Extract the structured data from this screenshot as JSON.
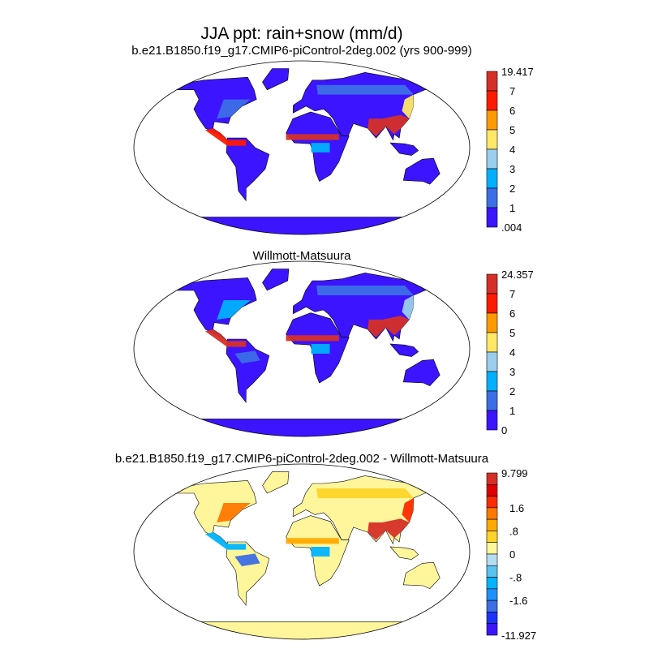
{
  "title": "JJA ppt: rain+snow (mm/d)",
  "panels": [
    {
      "subtitle": "b.e21.B1850.f19_g17.CMIP6-piControl-2deg.002 (yrs 900-999)",
      "colorbar": {
        "labels": [
          "19.417",
          "7",
          "6",
          "5",
          "4",
          "3",
          "2",
          "1",
          ".004"
        ],
        "colors": [
          "#d62f27",
          "#ff1a00",
          "#ff9900",
          "#ffe866",
          "#99cfec",
          "#00b0ff",
          "#3c6ee6",
          "#3c14ff"
        ]
      }
    },
    {
      "subtitle": "Willmott-Matsuura",
      "colorbar": {
        "labels": [
          "24.357",
          "7",
          "6",
          "5",
          "4",
          "3",
          "2",
          "1",
          "0"
        ],
        "colors": [
          "#d62f27",
          "#ff1a00",
          "#ff9900",
          "#ffe866",
          "#99cfec",
          "#00b0ff",
          "#3c6ee6",
          "#3c14ff"
        ]
      }
    },
    {
      "subtitle": "b.e21.B1850.f19_g17.CMIP6-piControl-2deg.002 - Willmott-Matsuura",
      "colorbar": {
        "labels": [
          "9.799",
          "",
          "",
          "1.6",
          "",
          ".8",
          "",
          "0",
          "",
          "-.8",
          "",
          "-1.6",
          "",
          "",
          "-11.927"
        ],
        "colors": [
          "#d62f27",
          "#e00000",
          "#ff2a00",
          "#ff7800",
          "#ffaa00",
          "#ffd42a",
          "#fff59a",
          "#b3dcf0",
          "#5ac3f0",
          "#00b4ff",
          "#1e90ff",
          "#3c6ee6",
          "#1e32ff",
          "#3c14ff"
        ]
      }
    }
  ]
}
